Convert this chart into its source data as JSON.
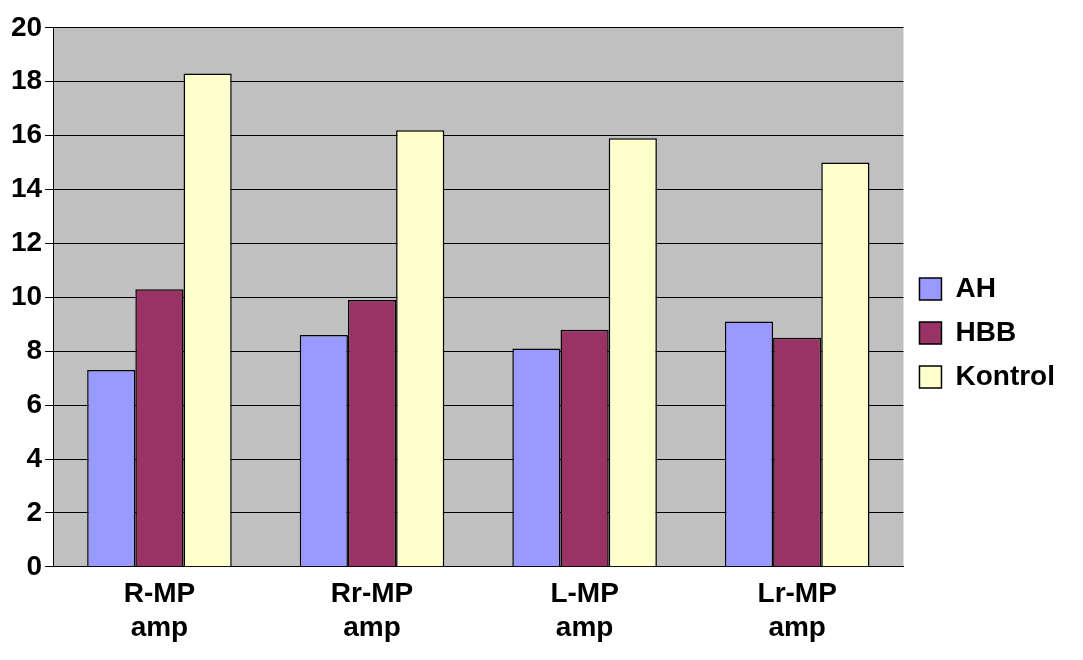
{
  "chart_data": {
    "type": "bar",
    "categories": [
      "R-MP amp",
      "Rr-MP amp",
      "L-MP amp",
      "Lr-MP amp"
    ],
    "series": [
      {
        "name": "AH",
        "color": "#9999ff",
        "values": [
          7.3,
          8.6,
          8.1,
          9.1
        ]
      },
      {
        "name": "HBB",
        "color": "#993366",
        "values": [
          10.3,
          9.9,
          8.8,
          8.5
        ]
      },
      {
        "name": "Kontrol",
        "color": "#ffffcc",
        "values": [
          18.3,
          16.2,
          15.9,
          15.0
        ]
      }
    ],
    "ylim": [
      0,
      20
    ],
    "yticks": [
      0,
      2,
      4,
      6,
      8,
      10,
      12,
      14,
      16,
      18,
      20
    ],
    "grid": "y",
    "legend": "right"
  }
}
